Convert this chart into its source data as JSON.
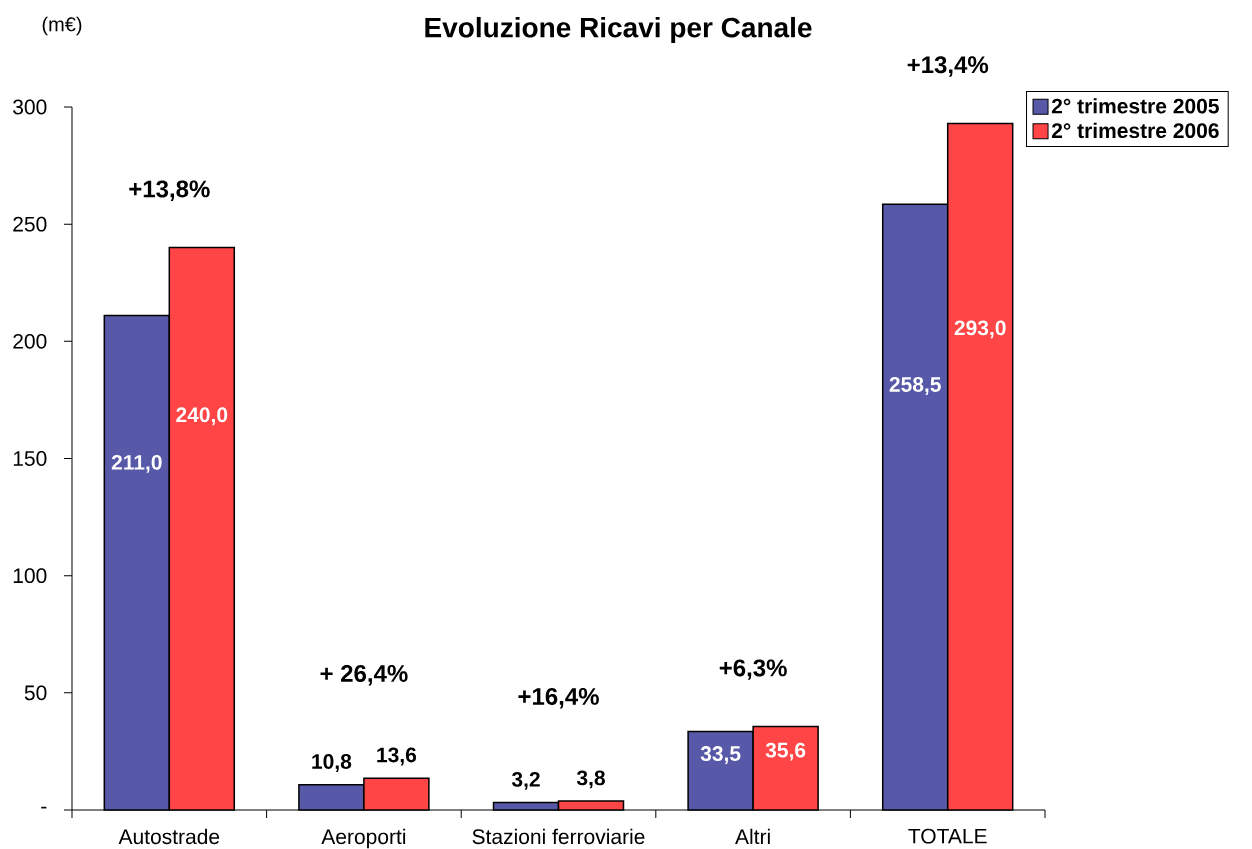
{
  "chart_data": {
    "type": "bar",
    "title": "Evoluzione Ricavi per Canale",
    "ylabel": "(m€)",
    "categories": [
      "Autostrade",
      "Aeroporti",
      "Stazioni ferroviarie",
      "Altri",
      "TOTALE"
    ],
    "series": [
      {
        "name": "2° trimestre 2005",
        "color": "#5858a8",
        "values": [
          211.0,
          10.8,
          3.2,
          33.5,
          258.5
        ],
        "value_labels": [
          "211,0",
          "10,8",
          "3,2",
          "33,5",
          "258,5"
        ]
      },
      {
        "name": "2° trimestre 2006",
        "color": "#ff4545",
        "values": [
          240.0,
          13.6,
          3.8,
          35.6,
          293.0
        ],
        "value_labels": [
          "240,0",
          "13,6",
          "3,8",
          "35,6",
          "293,0"
        ]
      }
    ],
    "ylim": [
      0,
      300
    ],
    "yticks": [
      {
        "value": 0,
        "label": "-"
      },
      50,
      100,
      150,
      200,
      250,
      300
    ],
    "legend": "top right",
    "annotations": [
      "+13,8%",
      "+ 26,4%",
      "+16,4%",
      "+6,3%",
      "+13,4%"
    ]
  }
}
